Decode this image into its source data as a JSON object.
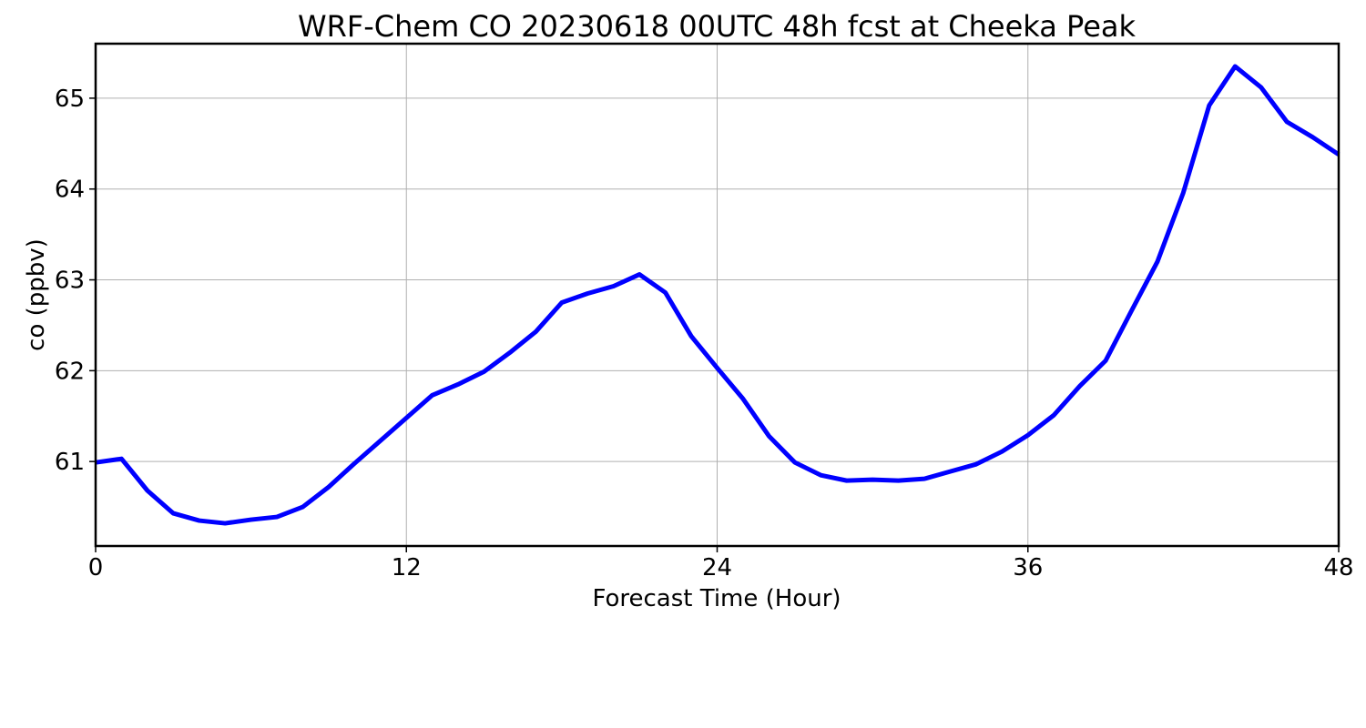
{
  "chart_data": {
    "type": "line",
    "title": "WRF-Chem CO  20230618 00UTC 48h fcst at Cheeka Peak",
    "xlabel": "Forecast Time (Hour)",
    "ylabel": "co  (ppbv)",
    "xlim": [
      0,
      48
    ],
    "ylim": [
      60.07,
      65.6
    ],
    "xticks": [
      0,
      12,
      24,
      36,
      48
    ],
    "yticks": [
      61,
      62,
      63,
      64,
      65
    ],
    "grid": true,
    "line_color": "#0000ff",
    "series": [
      {
        "x": [
          0,
          1,
          2,
          3,
          4,
          5,
          6,
          7,
          8,
          9,
          10,
          11,
          12,
          13,
          14,
          15,
          16,
          17,
          18,
          19,
          20,
          21,
          22,
          23,
          24,
          25,
          26,
          27,
          28,
          29,
          30,
          31,
          32,
          33,
          34,
          35,
          36,
          37,
          38,
          39,
          40,
          41,
          42,
          43,
          44,
          45,
          46,
          47,
          48
        ],
        "values": [
          60.99,
          61.03,
          60.68,
          60.43,
          60.35,
          60.32,
          60.36,
          60.39,
          60.5,
          60.72,
          60.98,
          61.23,
          61.48,
          61.73,
          61.85,
          61.99,
          62.2,
          62.43,
          62.75,
          62.85,
          62.93,
          63.06,
          62.86,
          62.38,
          62.03,
          61.69,
          61.28,
          60.99,
          60.85,
          60.79,
          60.8,
          60.79,
          60.81,
          60.89,
          60.97,
          61.11,
          61.29,
          61.51,
          61.83,
          62.11,
          62.66,
          63.2,
          63.96,
          64.92,
          65.35,
          65.12,
          64.74,
          64.57,
          64.38
        ]
      }
    ]
  }
}
